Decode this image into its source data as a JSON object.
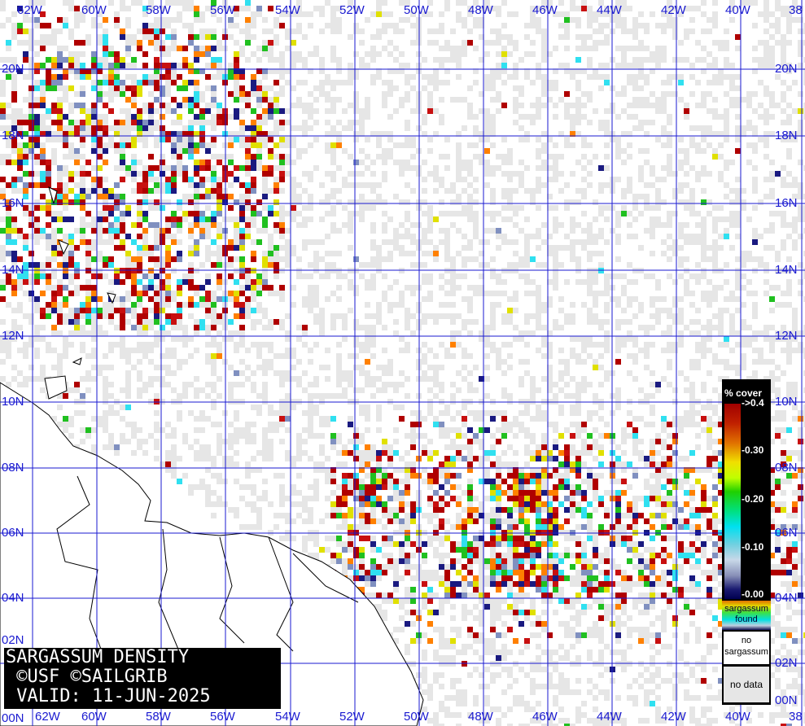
{
  "title": {
    "line1": "SARGASSUM DENSITY",
    "line2": " ©USF ©SAILGRIB",
    "line3": " VALID: 11-JUN-2025"
  },
  "grid": {
    "longitudes_top": [
      "62W",
      "60W",
      "58W",
      "56W",
      "54W",
      "52W",
      "50W",
      "48W",
      "46W",
      "44W",
      "42W",
      "40W",
      "38"
    ],
    "longitudes_bottom": [
      "62W",
      "60W",
      "58W",
      "56W",
      "54W",
      "52W",
      "50W",
      "48W",
      "46W",
      "44W",
      "42W",
      "40W",
      "38"
    ],
    "latitudes_left": [
      "20N",
      "18N",
      "16N",
      "14N",
      "12N",
      "10N",
      "08N",
      "06N",
      "04N",
      "02N",
      "00N"
    ],
    "latitudes_right": [
      "20N",
      "18N",
      "16N",
      "14N",
      "12N",
      "10N",
      "08N",
      "06N",
      "04N",
      "02N",
      "00N"
    ]
  },
  "legend": {
    "title": "% cover",
    "ticks": [
      "->0.4",
      "-0.30",
      "-0.20",
      "-0.10",
      "-0.00"
    ],
    "found_label": "sargassum found",
    "no_sargassum_label": "no sargassum",
    "no_data_label": "no data"
  },
  "colors": {
    "grid": "#1a1ad0",
    "no_data": "#e6e6e6",
    "high_density": "#b00000",
    "coastline": "#000000"
  }
}
